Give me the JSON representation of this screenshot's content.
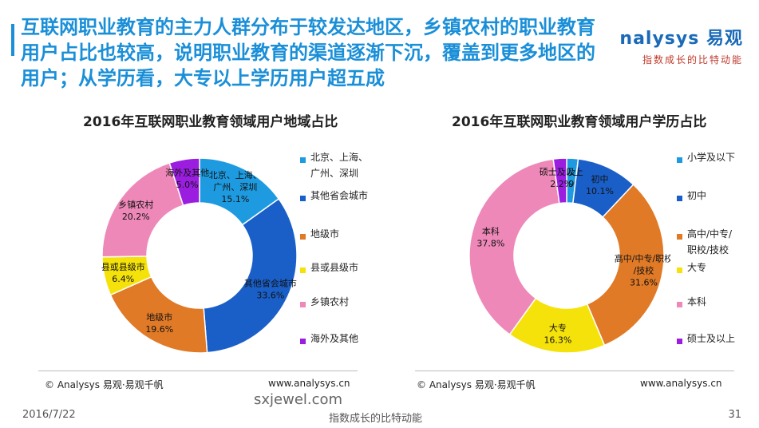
{
  "headline": "互联网职业教育的主力人群分布于较发达地区，乡镇农村的职业教育用户占比也较高，说明职业教育的渠道逐渐下沉，覆盖到更多地区的用户；从学历看，大专以上学历用户超五成",
  "brand": {
    "logo": "nalysys 易观",
    "slogan": "指数成长的比特动能"
  },
  "chart_data": [
    {
      "type": "pie",
      "title": "2016年互联网职业教育领域用户地域占比",
      "unit": "%",
      "slices": [
        {
          "name": "北京、上海、广州、深圳",
          "label": "北京、上海、\n广州、深圳",
          "value": 15.1,
          "display": "15.1%",
          "color": "#1e9be0"
        },
        {
          "name": "其他省会城市",
          "label": "其他省会城市",
          "value": 33.6,
          "display": "33.6%",
          "color": "#1a5fc8"
        },
        {
          "name": "地级市",
          "label": "地级市",
          "value": 19.6,
          "display": "19.6%",
          "color": "#e07a27"
        },
        {
          "name": "县或县级市",
          "label": "县或县级市",
          "value": 6.4,
          "display": "6.4%",
          "color": "#f5e20a"
        },
        {
          "name": "乡镇农村",
          "label": "乡镇农村",
          "value": 20.2,
          "display": "20.2%",
          "color": "#ee88b8"
        },
        {
          "name": "海外及其他",
          "label": "海外及其他",
          "value": 5.0,
          "display": "5.0%",
          "color": "#9b1ee0"
        }
      ],
      "legend": [
        "北京、上海、\n广州、深圳",
        "其他省会城市",
        "地级市",
        "县或县级市",
        "乡镇农村",
        "海外及其他"
      ],
      "legend_position": "right"
    },
    {
      "type": "pie",
      "title": "2016年互联网职业教育领域用户学历占比",
      "unit": "%",
      "slices": [
        {
          "name": "小学及以下",
          "label": "小学及以下",
          "value": 1.9,
          "display": "1.9%",
          "color": "#1e9be0"
        },
        {
          "name": "初中",
          "label": "初中",
          "value": 10.1,
          "display": "10.1%",
          "color": "#1a5fc8"
        },
        {
          "name": "高中/中专/职校/技校",
          "label": "高中/中专/职校\n/技校",
          "value": 31.6,
          "display": "31.6%",
          "color": "#e07a27"
        },
        {
          "name": "大专",
          "label": "大专",
          "value": 16.3,
          "display": "16.3%",
          "color": "#f5e20a"
        },
        {
          "name": "本科",
          "label": "本科",
          "value": 37.8,
          "display": "37.8%",
          "color": "#ee88b8"
        },
        {
          "name": "硕士及以上",
          "label": "硕士及以上",
          "value": 2.2,
          "display": "2.2%",
          "color": "#9b1ee0"
        }
      ],
      "legend": [
        "小学及以下",
        "初中",
        "高中/中专/\n职校/技校",
        "大专",
        "本科",
        "硕士及以上"
      ],
      "legend_position": "right"
    }
  ],
  "footer": {
    "source_left": "© Analysys 易观·易观千帆",
    "site_left": "www.analysys.cn",
    "source_right": "© Analysys 易观·易观千帆",
    "site_right": "www.analysys.cn",
    "date": "2016/7/22",
    "watermark": "sxjewel.com",
    "slogan": "指数成长的比特动能",
    "page": "31"
  }
}
